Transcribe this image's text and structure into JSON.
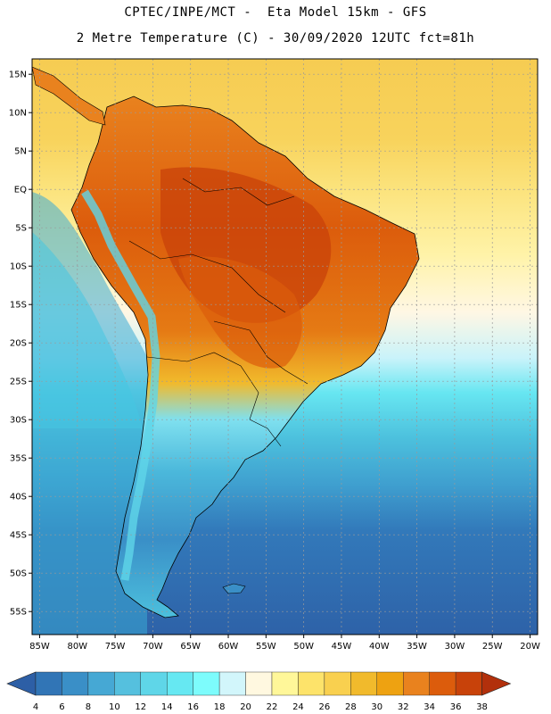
{
  "header": {
    "line1": "CPTEC/INPE/MCT -  Eta Model 15km - GFS",
    "line2": "2 Metre Temperature (C) - 30/09/2020 12UTC fct=81h"
  },
  "axes": {
    "lat_labels": [
      "15N",
      "10N",
      "5N",
      "EQ",
      "5S",
      "10S",
      "15S",
      "20S",
      "25S",
      "30S",
      "35S",
      "40S",
      "45S",
      "50S",
      "55S"
    ],
    "lat_values": [
      15,
      10,
      5,
      0,
      -5,
      -10,
      -15,
      -20,
      -25,
      -30,
      -35,
      -40,
      -45,
      -50,
      -55
    ],
    "lon_labels": [
      "85W",
      "80W",
      "75W",
      "70W",
      "65W",
      "60W",
      "55W",
      "50W",
      "45W",
      "40W",
      "35W",
      "30W",
      "25W",
      "20W"
    ],
    "lon_values": [
      -85,
      -80,
      -75,
      -70,
      -65,
      -60,
      -55,
      -50,
      -45,
      -40,
      -35,
      -30,
      -25,
      -20
    ],
    "lat_range": [
      -58,
      17
    ],
    "lon_range": [
      -86,
      -19
    ]
  },
  "colorbar": {
    "labels": [
      "4",
      "6",
      "8",
      "10",
      "12",
      "14",
      "16",
      "18",
      "20",
      "22",
      "24",
      "26",
      "28",
      "30",
      "32",
      "34",
      "36",
      "38"
    ],
    "colors": [
      "#2d5fa6",
      "#3175b6",
      "#3a8fc7",
      "#46a8d4",
      "#55c0de",
      "#5fd6e8",
      "#66e8f2",
      "#7dfcfc",
      "#d2f6fb",
      "#fff8e0",
      "#fff799",
      "#fde36a",
      "#f9d04f",
      "#f1ba2c",
      "#eea211",
      "#e9821e",
      "#dc5c0c",
      "#c8420a",
      "#b2300c"
    ]
  },
  "palette": {
    "land_border": "#000000",
    "grid": "#9a9a9a",
    "tmin_ocean": "#2d5fa6"
  }
}
